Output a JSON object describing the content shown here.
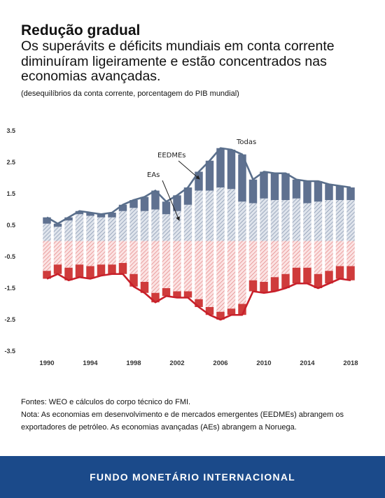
{
  "header": {
    "title": "Redução gradual",
    "subtitle": "Os superávits e déficits mundiais em conta corrente diminuíram ligeiramente e estão concentrados nas economias avançadas.",
    "note": "(desequilíbrios da conta corrente, porcentagem do PIB mundial)"
  },
  "chart_data": {
    "type": "bar",
    "x": [
      1990,
      1991,
      1992,
      1993,
      1994,
      1995,
      1996,
      1997,
      1998,
      1999,
      2000,
      2001,
      2002,
      2003,
      2004,
      2005,
      2006,
      2007,
      2008,
      2009,
      2010,
      2011,
      2012,
      2013,
      2014,
      2015,
      2016,
      2017,
      2018
    ],
    "series": [
      {
        "name": "EAs",
        "values": [
          0.55,
          0.45,
          0.65,
          0.85,
          0.8,
          0.75,
          0.75,
          0.95,
          1.05,
          0.95,
          1.0,
          0.85,
          0.95,
          1.15,
          1.6,
          1.6,
          1.7,
          1.65,
          1.25,
          1.2,
          1.35,
          1.3,
          1.3,
          1.35,
          1.2,
          1.25,
          1.3,
          1.3,
          1.3
        ]
      },
      {
        "name": "EEDMEs",
        "values": [
          0.2,
          0.1,
          0.1,
          0.1,
          0.1,
          0.1,
          0.15,
          0.2,
          0.25,
          0.45,
          0.6,
          0.4,
          0.5,
          0.55,
          0.6,
          0.95,
          1.25,
          1.25,
          1.5,
          0.75,
          0.85,
          0.85,
          0.85,
          0.6,
          0.7,
          0.65,
          0.5,
          0.45,
          0.4
        ]
      },
      {
        "name": "",
        "values": [
          -0.95,
          -0.75,
          -0.85,
          -0.75,
          -0.8,
          -0.75,
          -0.75,
          -0.7,
          -1.05,
          -1.3,
          -1.65,
          -1.5,
          -1.6,
          -1.6,
          -1.85,
          -2.1,
          -2.25,
          -2.15,
          -2.0,
          -1.25,
          -1.3,
          -1.15,
          -1.05,
          -0.85,
          -0.85,
          -1.05,
          -0.95,
          -0.8,
          -0.8
        ]
      },
      {
        "name": "",
        "values": [
          -0.25,
          -0.3,
          -0.4,
          -0.4,
          -0.4,
          -0.35,
          -0.3,
          -0.35,
          -0.4,
          -0.35,
          -0.3,
          -0.25,
          -0.2,
          -0.2,
          -0.25,
          -0.25,
          -0.25,
          -0.2,
          -0.35,
          -0.35,
          -0.35,
          -0.45,
          -0.45,
          -0.5,
          -0.5,
          -0.45,
          -0.4,
          -0.4,
          -0.45
        ]
      }
    ],
    "totals": {
      "name": "Todas",
      "positive": [
        0.75,
        0.55,
        0.75,
        0.95,
        0.9,
        0.85,
        0.9,
        1.15,
        1.3,
        1.4,
        1.6,
        1.25,
        1.45,
        1.7,
        2.2,
        2.55,
        2.95,
        2.9,
        2.75,
        1.95,
        2.2,
        2.15,
        2.15,
        1.95,
        1.9,
        1.9,
        1.8,
        1.75,
        1.7
      ],
      "negative": [
        -1.2,
        -1.05,
        -1.25,
        -1.15,
        -1.2,
        -1.1,
        -1.05,
        -1.05,
        -1.45,
        -1.65,
        -1.95,
        -1.75,
        -1.8,
        -1.8,
        -2.1,
        -2.35,
        -2.5,
        -2.35,
        -2.35,
        -1.6,
        -1.65,
        -1.6,
        -1.5,
        -1.35,
        -1.35,
        -1.5,
        -1.35,
        -1.2,
        -1.25
      ]
    },
    "annotations": [
      "Todas",
      "EEDMEs",
      "EAs"
    ],
    "ylim": [
      -3.5,
      3.5
    ],
    "yticks": [
      "3.5",
      "2.5",
      "1.5",
      "0.5",
      "-0.5",
      "-1.5",
      "-2.5",
      "-3.5"
    ],
    "xticks": [
      "1990",
      "1994",
      "1998",
      "2002",
      "2006",
      "2010",
      "2014",
      "2018"
    ],
    "title": "",
    "xlabel": "",
    "ylabel": "",
    "colors": {
      "adv_pos": "#b9c4d6",
      "em_pos": "#5f7190",
      "adv_neg": "#f2b6b6",
      "em_neg": "#cf3b3b",
      "line_pos": "#5a6f8c",
      "line_neg": "#c8202a"
    }
  },
  "footnotes": {
    "source": "Fontes: WEO e cálculos do corpo técnico do FMI.",
    "note": "Nota: As economias em desenvolvimento e de mercados emergentes (EEDMEs) abrangem os exportadores de petróleo. As economias avançadas (AEs) abrangem a Noruega."
  },
  "footer": {
    "label": "FUNDO MONETÁRIO INTERNACIONAL"
  }
}
